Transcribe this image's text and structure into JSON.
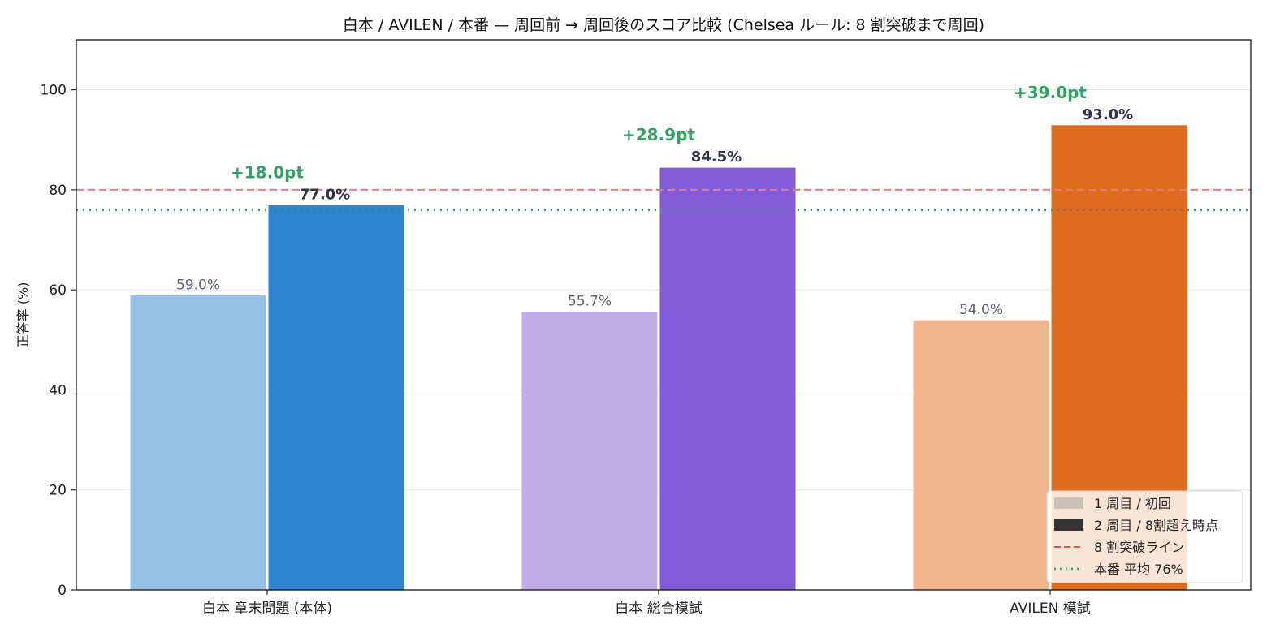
{
  "chart_data": {
    "type": "bar",
    "title": "白本 / AVILEN / 本番 — 周回前 → 周回後のスコア比較 (Chelsea ルール: 8 割突破まで周回)",
    "xlabel": "",
    "ylabel": "正答率 (%)",
    "ylim": [
      0,
      110
    ],
    "yticks": [
      0,
      20,
      40,
      60,
      80,
      100
    ],
    "grid": "y",
    "legend_position": "bottom-right",
    "categories": [
      "白本 章末問題 (本体)",
      "白本 総合模試",
      "AVILEN 模試"
    ],
    "series": [
      {
        "name": "1 周目 / 初回",
        "values": [
          59.0,
          55.7,
          54.0
        ],
        "labels": [
          "59.0%",
          "55.7%",
          "54.0%"
        ],
        "colors": [
          "#98bfe6",
          "#c0ade8",
          "#eeb48e"
        ]
      },
      {
        "name": "2 周目 / 8割超え時点",
        "values": [
          77.0,
          84.5,
          93.0
        ],
        "labels": [
          "77.0%",
          "84.5%",
          "93.0%"
        ],
        "colors": [
          "#3082ce",
          "#805bd5",
          "#de6b20"
        ]
      }
    ],
    "deltas": [
      "+18.0pt",
      "+28.9pt",
      "+39.0pt"
    ],
    "reference_lines": [
      {
        "name": "8 割突破ライン",
        "value": 80,
        "style": "dashed",
        "color": "#e47f7f"
      },
      {
        "name": "本番 平均 76%",
        "value": 76,
        "style": "dotted",
        "color": "#36a064"
      }
    ],
    "legend": [
      {
        "label": "1 周目 / 初回",
        "kind": "patch",
        "color": "#c9c0b8"
      },
      {
        "label": "2 周目 / 8割超え時点",
        "kind": "patch",
        "color": "#333333"
      },
      {
        "label": "8 割突破ライン",
        "kind": "dashed",
        "color": "#e05050"
      },
      {
        "label": "本番 平均 76%",
        "kind": "dotted",
        "color": "#36a064"
      }
    ]
  }
}
